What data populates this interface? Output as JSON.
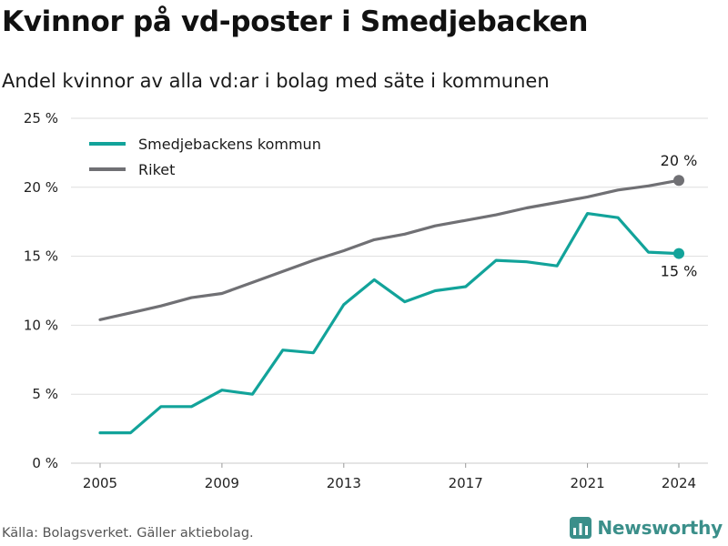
{
  "title": "Kvinnor på vd-poster i Smedjebacken",
  "subtitle": "Andel kvinnor av alla vd:ar i bolag med säte i kommunen",
  "source": "Källa: Bolagsverket. Gäller aktiebolag.",
  "brand": "Newsworthy",
  "colors": {
    "kommun": "#12a39a",
    "riket": "#707074",
    "grid": "#dedede",
    "brand": "#3b8f8a"
  },
  "chart_data": {
    "type": "line",
    "x": [
      2005,
      2006,
      2007,
      2008,
      2009,
      2010,
      2011,
      2012,
      2013,
      2014,
      2015,
      2016,
      2017,
      2018,
      2019,
      2020,
      2021,
      2022,
      2023,
      2024
    ],
    "x_ticks": [
      2005,
      2009,
      2013,
      2017,
      2021,
      2024
    ],
    "x_tick_labels": [
      "2005",
      "2009",
      "2013",
      "2017",
      "2021",
      "2024"
    ],
    "y_ticks": [
      0,
      5,
      10,
      15,
      20,
      25
    ],
    "y_tick_labels": [
      "0 %",
      "5 %",
      "10 %",
      "15 %",
      "20 %",
      "25 %"
    ],
    "ylim": [
      0,
      25
    ],
    "grid": true,
    "legend_position": "top-left",
    "series": [
      {
        "name": "Smedjebackens kommun",
        "color": "#12a39a",
        "values": [
          2.2,
          2.2,
          4.1,
          4.1,
          5.3,
          5.0,
          8.2,
          8.0,
          11.5,
          13.3,
          11.7,
          12.5,
          12.8,
          14.7,
          14.6,
          14.3,
          18.1,
          17.8,
          15.3,
          15.2
        ],
        "end_label": "15 %"
      },
      {
        "name": "Riket",
        "color": "#707074",
        "values": [
          10.4,
          10.9,
          11.4,
          12.0,
          12.3,
          13.1,
          13.9,
          14.7,
          15.4,
          16.2,
          16.6,
          17.2,
          17.6,
          18.0,
          18.5,
          18.9,
          19.3,
          19.8,
          20.1,
          20.5
        ],
        "end_label": "20 %"
      }
    ]
  }
}
